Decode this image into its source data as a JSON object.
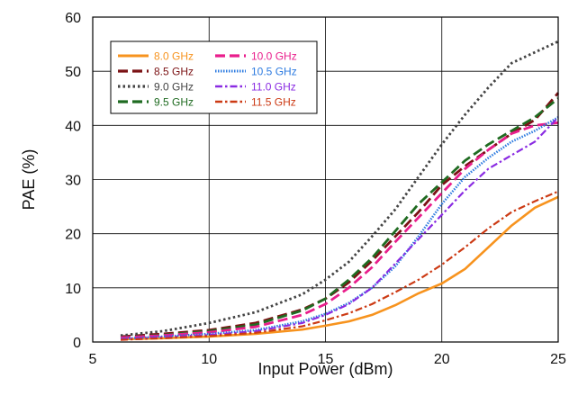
{
  "chart_data": {
    "type": "line",
    "xlabel": "Input Power (dBm)",
    "ylabel": "PAE (%)",
    "xlim": [
      5,
      25
    ],
    "ylim": [
      0,
      60
    ],
    "x_ticks": [
      "5",
      "10",
      "15",
      "20",
      "25"
    ],
    "y_ticks": [
      "0",
      "10",
      "20",
      "30",
      "40",
      "50",
      "60"
    ],
    "grid": true,
    "legend_position": "top-left",
    "series": [
      {
        "name": "8.0 GHz",
        "color": "#f7931e",
        "dash": "solid",
        "x": [
          6.2,
          8,
          10,
          12,
          14,
          15,
          16,
          17,
          18,
          19,
          20,
          21,
          22,
          23,
          24,
          25
        ],
        "y": [
          0.5,
          0.7,
          1.0,
          1.5,
          2.3,
          3.0,
          3.8,
          5.0,
          6.8,
          9.0,
          10.8,
          13.5,
          17.5,
          21.5,
          24.8,
          26.8
        ]
      },
      {
        "name": "8.5 GHz",
        "color": "#7b1214",
        "dash": "long-dash",
        "x": [
          6.2,
          8,
          10,
          12,
          14,
          15,
          16,
          17,
          18,
          19,
          20,
          21,
          22,
          23,
          24,
          24.5,
          25
        ],
        "y": [
          1.0,
          1.5,
          2.2,
          3.5,
          6.0,
          8.0,
          11.0,
          15.0,
          19.5,
          24.0,
          29.0,
          32.5,
          35.5,
          38.5,
          41.0,
          43.5,
          46.0
        ]
      },
      {
        "name": "9.0 GHz",
        "color": "#444444",
        "dash": "dot",
        "x": [
          6.2,
          8,
          10,
          12,
          14,
          15,
          16,
          17,
          18,
          19,
          20,
          21,
          22,
          23,
          24,
          25
        ],
        "y": [
          1.2,
          2.0,
          3.5,
          5.5,
          8.8,
          11.5,
          14.8,
          19.5,
          24.5,
          30.5,
          36.5,
          42.0,
          47.0,
          51.5,
          53.5,
          55.5
        ]
      },
      {
        "name": "9.5 GHz",
        "color": "#1f6b21",
        "dash": "long-dash",
        "x": [
          6.2,
          8,
          10,
          12,
          14,
          15,
          16,
          17,
          18,
          19,
          20,
          21,
          22,
          23,
          24,
          25
        ],
        "y": [
          0.8,
          1.3,
          2.0,
          3.2,
          5.8,
          8.0,
          11.5,
          15.5,
          20.5,
          25.5,
          29.5,
          33.5,
          36.5,
          39.0,
          41.5,
          45.0
        ]
      },
      {
        "name": "10.0 GHz",
        "color": "#e91e8c",
        "dash": "long-dash",
        "x": [
          6.2,
          8,
          10,
          12,
          14,
          15,
          16,
          17,
          18,
          19,
          20,
          21,
          22,
          23,
          24,
          25
        ],
        "y": [
          0.8,
          1.2,
          1.8,
          2.8,
          5.0,
          7.0,
          10.0,
          13.8,
          18.5,
          23.0,
          27.5,
          32.0,
          35.5,
          38.5,
          40.0,
          40.5
        ]
      },
      {
        "name": "10.5 GHz",
        "color": "#2d7be0",
        "dash": "fine-dot",
        "x": [
          6.2,
          8,
          10,
          12,
          14,
          15,
          16,
          17,
          18,
          19,
          20,
          21,
          22,
          23,
          24,
          25
        ],
        "y": [
          0.6,
          1.0,
          1.5,
          2.2,
          3.8,
          5.2,
          7.2,
          10.0,
          14.0,
          19.5,
          25.5,
          30.5,
          34.0,
          37.0,
          39.0,
          41.5
        ]
      },
      {
        "name": "11.0 GHz",
        "color": "#8a2be2",
        "dash": "dash-dot",
        "x": [
          6.2,
          8,
          10,
          12,
          14,
          15,
          16,
          17,
          18,
          19,
          20,
          21,
          22,
          23,
          24,
          25
        ],
        "y": [
          0.5,
          0.9,
          1.3,
          2.0,
          3.5,
          5.0,
          7.0,
          10.0,
          14.5,
          19.0,
          23.5,
          28.0,
          32.0,
          34.5,
          37.0,
          41.5
        ]
      },
      {
        "name": "11.5 GHz",
        "color": "#cc3a14",
        "dash": "dash-dot",
        "x": [
          6.2,
          8,
          10,
          12,
          14,
          15,
          16,
          17,
          18,
          19,
          20,
          21,
          22,
          23,
          24,
          25
        ],
        "y": [
          0.4,
          0.7,
          1.1,
          1.7,
          2.9,
          4.0,
          5.3,
          7.0,
          9.2,
          11.5,
          14.3,
          17.5,
          21.0,
          24.0,
          26.0,
          27.8
        ]
      }
    ]
  }
}
